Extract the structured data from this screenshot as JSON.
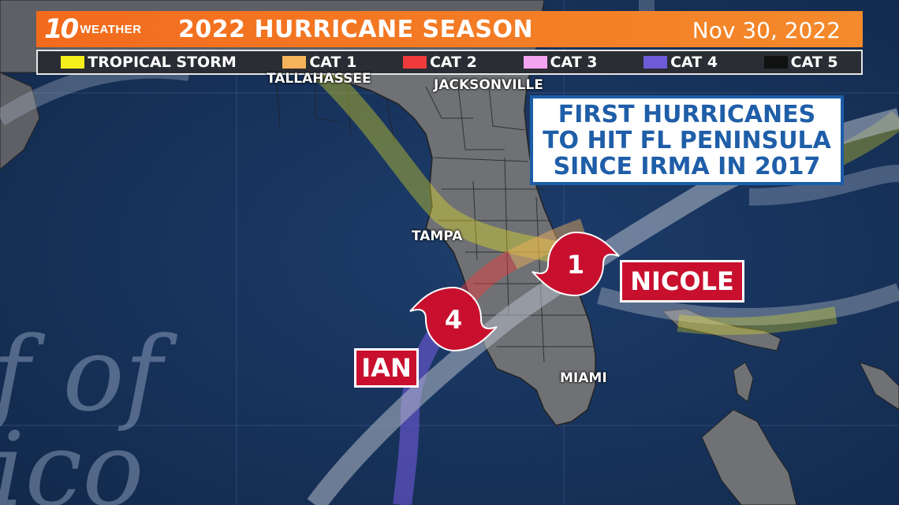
{
  "banner": {
    "logo_number": "10",
    "logo_word": "WEATHER",
    "title": "2022 HURRICANE SEASON",
    "date": "Nov 30, 2022"
  },
  "legend": [
    {
      "label": "TROPICAL STORM",
      "color": "#f5f01c"
    },
    {
      "label": "CAT 1",
      "color": "#f6b45a"
    },
    {
      "label": "CAT 2",
      "color": "#ef3b3b"
    },
    {
      "label": "CAT 3",
      "color": "#f4a3ee"
    },
    {
      "label": "CAT 4",
      "color": "#6f5ad8"
    },
    {
      "label": "CAT 5",
      "color": "#111111"
    }
  ],
  "cities": {
    "tallahassee": "TALLAHASSEE",
    "jacksonville": "JACKSONVILLE",
    "tampa": "TAMPA",
    "miami": "MIAMI"
  },
  "callout": {
    "line1": "FIRST HURRICANES",
    "line2": "TO HIT FL PENINSULA",
    "line3": "SINCE IRMA IN 2017"
  },
  "storms": {
    "ian": {
      "name": "IAN",
      "category": "4"
    },
    "nicole": {
      "name": "NICOLE",
      "category": "1"
    }
  },
  "basemap": {
    "gulf_text_1": "f of",
    "gulf_text_2": "ico"
  },
  "colors": {
    "ocean": "#16315a",
    "land": "#6f7175",
    "banner": "#f26b1d",
    "storm_red": "#c8102e",
    "callout_blue": "#1f5ea8"
  }
}
